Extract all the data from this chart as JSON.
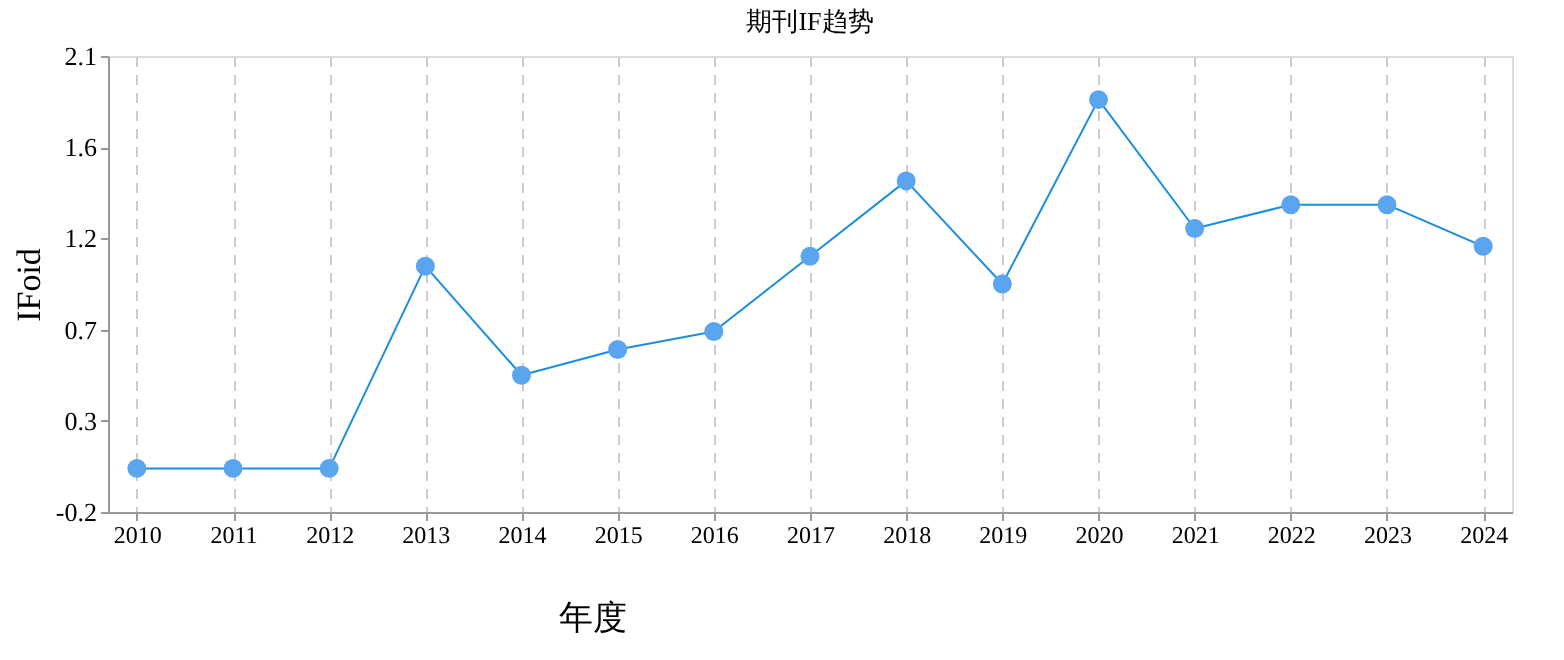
{
  "chart_data": {
    "type": "line",
    "title": "期刊IF趋势",
    "xlabel": "年度",
    "ylabel": "IFoid",
    "categories": [
      "2010",
      "2011",
      "2012",
      "2013",
      "2014",
      "2015",
      "2016",
      "2017",
      "2018",
      "2019",
      "2020",
      "2021",
      "2022",
      "2023",
      "2024"
    ],
    "series": [
      {
        "color": "#1a8ee0",
        "values": [
          0.02,
          0.02,
          0.02,
          1.04,
          0.49,
          0.62,
          0.71,
          1.09,
          1.47,
          0.95,
          1.88,
          1.23,
          1.35,
          1.35,
          1.14
        ]
      }
    ],
    "ylim": [
      -0.2,
      2.1
    ],
    "yticks": [
      -0.2,
      {
        "value": 0.26,
        "label": "0.3"
      },
      {
        "value": 0.72,
        "label": "0.7"
      },
      {
        "value": 1.18,
        "label": "1.2"
      },
      {
        "value": 1.64,
        "label": "1.6"
      },
      2.1
    ],
    "grid": "x",
    "marker": "circle",
    "line_style": "solid"
  }
}
